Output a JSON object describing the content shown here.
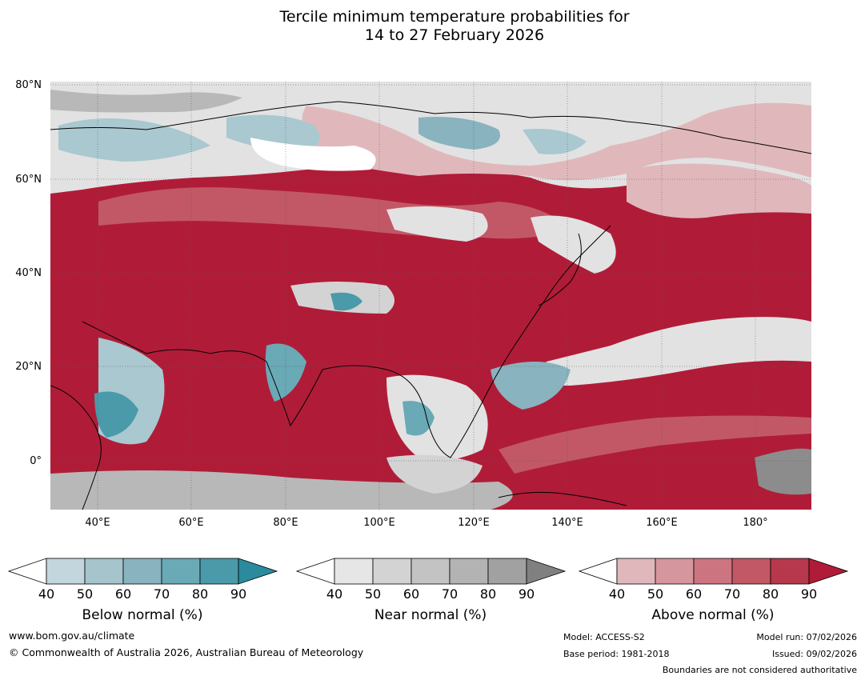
{
  "title_line1": "Tercile minimum temperature probabilities for",
  "title_line2": "14 to 27 February 2026",
  "lat_labels": [
    "80°N",
    "60°N",
    "40°N",
    "20°N",
    "0°"
  ],
  "lon_labels": [
    "40°E",
    "60°E",
    "80°E",
    "100°E",
    "120°E",
    "140°E",
    "160°E",
    "180°"
  ],
  "colorbars": [
    {
      "title": "Below normal (%)",
      "ticks": [
        "40",
        "50",
        "60",
        "70",
        "80",
        "90"
      ],
      "colors": [
        "#ffffff",
        "#c3d6dd",
        "#a5c4cb",
        "#88b3bf",
        "#6aa9b6",
        "#4a9aaa",
        "#2b8a9c"
      ]
    },
    {
      "title": "Near normal (%)",
      "ticks": [
        "40",
        "50",
        "60",
        "70",
        "80",
        "90"
      ],
      "colors": [
        "#ffffff",
        "#e6e6e6",
        "#d3d3d3",
        "#c3c3c3",
        "#b3b3b3",
        "#a1a1a1",
        "#808080"
      ]
    },
    {
      "title": "Above normal (%)",
      "ticks": [
        "40",
        "50",
        "60",
        "70",
        "80",
        "90"
      ],
      "colors": [
        "#ffffff",
        "#e0b8bc",
        "#d6969d",
        "#cc7580",
        "#c25866",
        "#b7374c",
        "#b01c38"
      ]
    }
  ],
  "footer": {
    "url": "www.bom.gov.au/climate",
    "copyright": "© Commonwealth of Australia 2026, Australian Bureau of Meteorology",
    "model": "Model: ACCESS-S2",
    "base_period": "Base period: 1981-2018",
    "model_run": "Model run: 07/02/2026",
    "issued": "Issued: 09/02/2026",
    "disclaimer": "Boundaries are not considered authoritative"
  },
  "map_colors": {
    "above_dark": "#b01c38",
    "above_mid": "#c25866",
    "above_light": "#e0b8bc",
    "near_light": "#e2e2e2",
    "near_mid": "#b8b8b8",
    "near_dark": "#8c8c8c",
    "below_light": "#a9c8d0",
    "below_dark": "#3f97a8"
  }
}
